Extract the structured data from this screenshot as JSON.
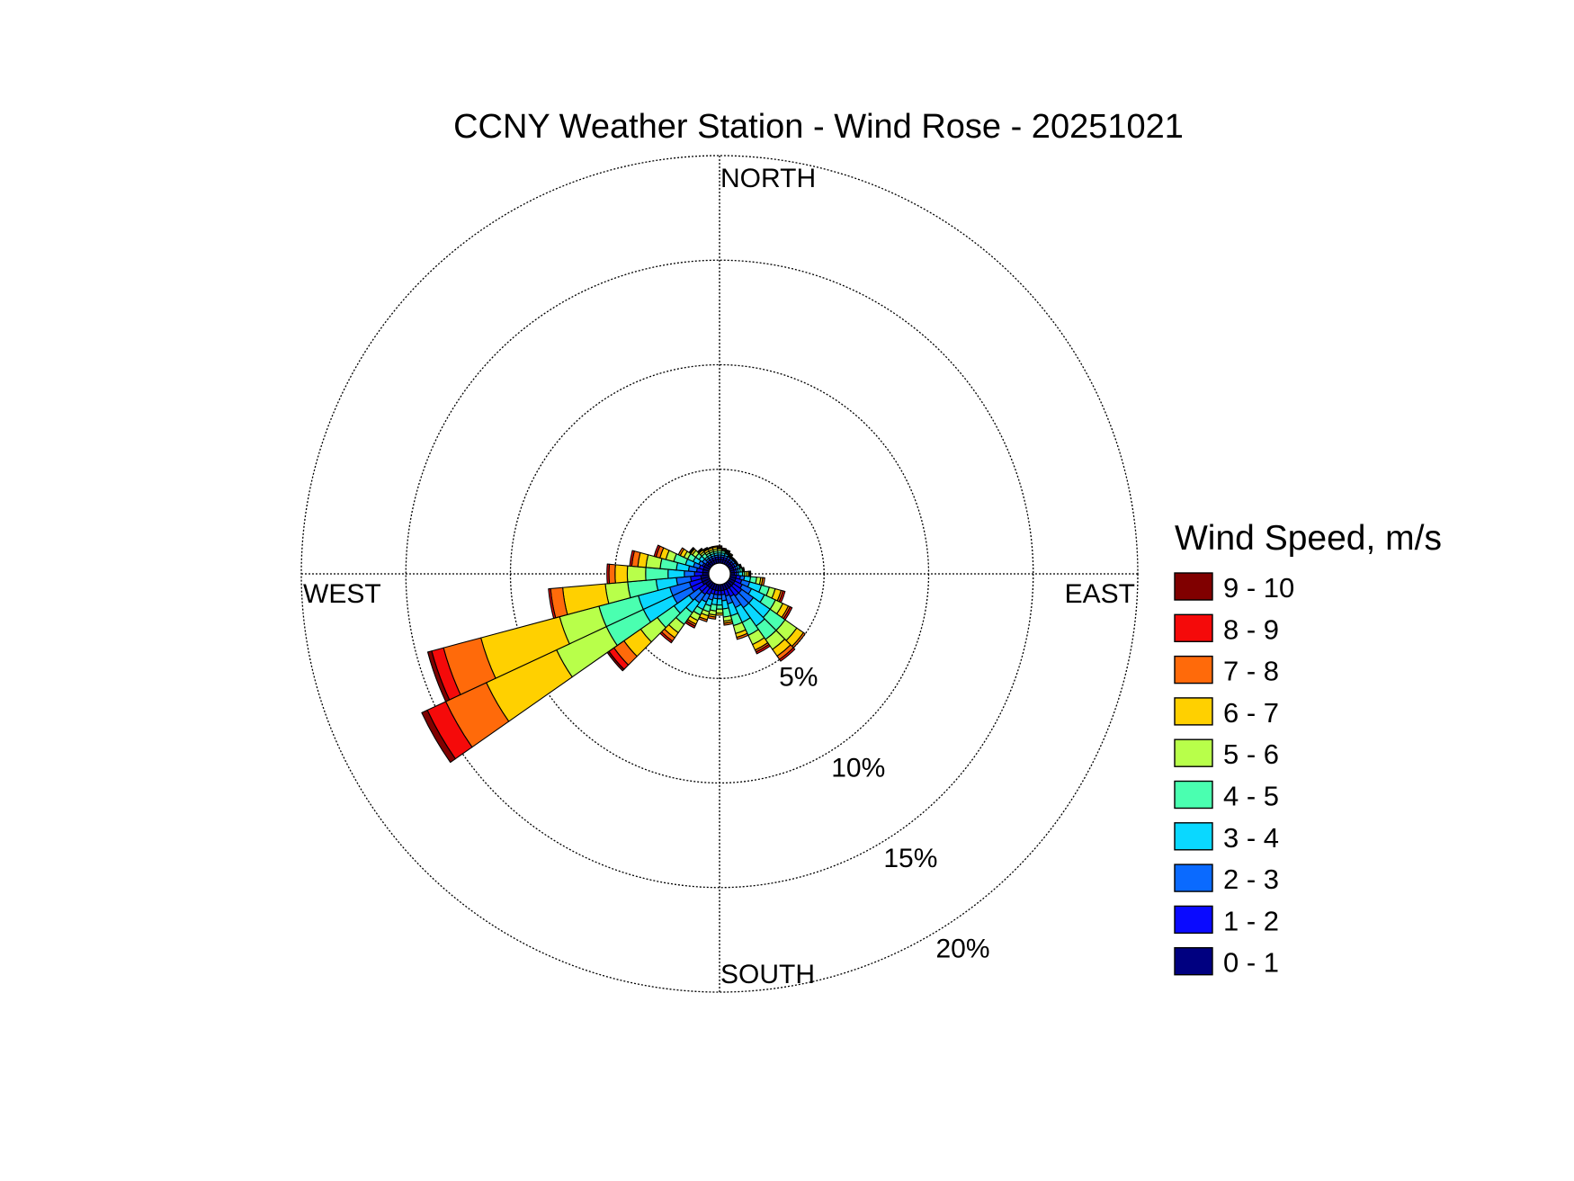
{
  "chart_data": {
    "type": "wind-rose",
    "title": "CCNY Weather Station - Wind Rose - 20251021",
    "compass": {
      "north": "NORTH",
      "south": "SOUTH",
      "east": "EAST",
      "west": "WEST"
    },
    "radial_axis": {
      "unit": "%",
      "max": 20,
      "rings": [
        5,
        10,
        15,
        20
      ],
      "ring_labels": [
        "5%",
        "10%",
        "15%",
        "20%"
      ],
      "grid": true
    },
    "legend": {
      "title": "Wind Speed, m/s",
      "placement": "right",
      "bins": [
        {
          "label": "9 - 10",
          "color": "#800000"
        },
        {
          "label": "8 - 9",
          "color": "#f50a0a"
        },
        {
          "label": "7 - 8",
          "color": "#ff6a0a"
        },
        {
          "label": "6 - 7",
          "color": "#ffd000"
        },
        {
          "label": "5 - 6",
          "color": "#b8ff4a"
        },
        {
          "label": "4 - 5",
          "color": "#4affb0"
        },
        {
          "label": "3 - 4",
          "color": "#0ad8ff"
        },
        {
          "label": "2 - 3",
          "color": "#0a6aff"
        },
        {
          "label": "1 - 2",
          "color": "#0a0aff"
        },
        {
          "label": "0 - 1",
          "color": "#000080"
        }
      ]
    },
    "sector_width_deg": 10,
    "speed_bins_order": [
      "0 - 1",
      "1 - 2",
      "2 - 3",
      "3 - 4",
      "4 - 5",
      "5 - 6",
      "6 - 7",
      "7 - 8",
      "8 - 9",
      "9 - 10"
    ],
    "directions": [
      {
        "dir": 0,
        "cumulative": [
          0.2,
          0.3,
          0.4,
          0.5,
          0.6,
          0.7,
          0.75,
          0.8,
          0.85,
          0.85
        ]
      },
      {
        "dir": 10,
        "cumulative": [
          0.2,
          0.3,
          0.4,
          0.5,
          0.6,
          0.65,
          0.7,
          0.75,
          0.75,
          0.75
        ]
      },
      {
        "dir": 20,
        "cumulative": [
          0.2,
          0.3,
          0.4,
          0.5,
          0.55,
          0.6,
          0.65,
          0.7,
          0.7,
          0.7
        ]
      },
      {
        "dir": 30,
        "cumulative": [
          0.2,
          0.3,
          0.4,
          0.45,
          0.5,
          0.55,
          0.6,
          0.6,
          0.6,
          0.6
        ]
      },
      {
        "dir": 40,
        "cumulative": [
          0.2,
          0.3,
          0.4,
          0.45,
          0.5,
          0.5,
          0.5,
          0.5,
          0.5,
          0.5
        ]
      },
      {
        "dir": 50,
        "cumulative": [
          0.2,
          0.3,
          0.4,
          0.45,
          0.5,
          0.5,
          0.5,
          0.5,
          0.5,
          0.5
        ]
      },
      {
        "dir": 60,
        "cumulative": [
          0.2,
          0.3,
          0.4,
          0.45,
          0.5,
          0.5,
          0.5,
          0.5,
          0.5,
          0.5
        ]
      },
      {
        "dir": 70,
        "cumulative": [
          0.2,
          0.3,
          0.4,
          0.5,
          0.55,
          0.6,
          0.6,
          0.6,
          0.6,
          0.6
        ]
      },
      {
        "dir": 80,
        "cumulative": [
          0.2,
          0.3,
          0.4,
          0.5,
          0.6,
          0.65,
          0.7,
          0.7,
          0.7,
          0.7
        ]
      },
      {
        "dir": 90,
        "cumulative": [
          0.2,
          0.3,
          0.4,
          0.6,
          0.7,
          0.8,
          0.9,
          0.95,
          1.0,
          1.0
        ]
      },
      {
        "dir": 100,
        "cumulative": [
          0.3,
          0.5,
          0.7,
          1.0,
          1.3,
          1.5,
          1.6,
          1.7,
          1.7,
          1.7
        ]
      },
      {
        "dir": 110,
        "cumulative": [
          0.3,
          0.6,
          1.0,
          1.6,
          2.0,
          2.3,
          2.6,
          2.7,
          2.8,
          2.8
        ]
      },
      {
        "dir": 120,
        "cumulative": [
          0.3,
          0.7,
          1.2,
          1.9,
          2.5,
          2.9,
          3.2,
          3.3,
          3.4,
          3.4
        ]
      },
      {
        "dir": 130,
        "cumulative": [
          0.3,
          0.8,
          1.5,
          2.5,
          3.4,
          4.1,
          4.5,
          4.6,
          4.6,
          4.6
        ]
      },
      {
        "dir": 140,
        "cumulative": [
          0.3,
          0.8,
          1.5,
          2.6,
          3.4,
          4.0,
          4.4,
          4.6,
          4.7,
          4.7
        ]
      },
      {
        "dir": 150,
        "cumulative": [
          0.3,
          0.7,
          1.3,
          2.1,
          2.8,
          3.3,
          3.6,
          3.7,
          3.8,
          3.8
        ]
      },
      {
        "dir": 160,
        "cumulative": [
          0.3,
          0.6,
          1.0,
          1.6,
          2.1,
          2.5,
          2.7,
          2.8,
          2.8,
          2.8
        ]
      },
      {
        "dir": 170,
        "cumulative": [
          0.3,
          0.5,
          0.8,
          1.2,
          1.6,
          1.8,
          1.9,
          2.0,
          2.0,
          2.0
        ]
      },
      {
        "dir": 180,
        "cumulative": [
          0.3,
          0.5,
          0.7,
          1.0,
          1.2,
          1.4,
          1.5,
          1.5,
          1.5,
          1.5
        ]
      },
      {
        "dir": 190,
        "cumulative": [
          0.3,
          0.5,
          0.7,
          1.0,
          1.3,
          1.5,
          1.6,
          1.7,
          1.7,
          1.7
        ]
      },
      {
        "dir": 200,
        "cumulative": [
          0.3,
          0.5,
          0.8,
          1.1,
          1.4,
          1.6,
          1.8,
          1.9,
          1.9,
          1.9
        ]
      },
      {
        "dir": 210,
        "cumulative": [
          0.3,
          0.6,
          1.0,
          1.4,
          1.7,
          2.0,
          2.2,
          2.3,
          2.4,
          2.4
        ]
      },
      {
        "dir": 220,
        "cumulative": [
          0.3,
          0.7,
          1.2,
          1.8,
          2.5,
          3.0,
          3.3,
          3.5,
          3.6,
          3.6
        ]
      },
      {
        "dir": 230,
        "cumulative": [
          0.3,
          0.7,
          1.3,
          2.2,
          3.2,
          4.2,
          5.2,
          5.8,
          6.1,
          6.2
        ]
      },
      {
        "dir": 240,
        "cumulative": [
          0.4,
          1.0,
          2.0,
          3.6,
          5.6,
          8.3,
          12.1,
          14.3,
          15.3,
          15.6
        ]
      },
      {
        "dir": 250,
        "cumulative": [
          0.4,
          1.0,
          2.0,
          3.6,
          5.6,
          7.6,
          11.6,
          13.5,
          14.1,
          14.3
        ]
      },
      {
        "dir": 260,
        "cumulative": [
          0.4,
          0.9,
          1.6,
          2.6,
          4.0,
          5.1,
          7.2,
          7.8,
          7.9,
          7.9
        ]
      },
      {
        "dir": 270,
        "cumulative": [
          0.3,
          0.7,
          1.2,
          2.0,
          3.1,
          4.0,
          4.6,
          4.9,
          5.0,
          5.0
        ]
      },
      {
        "dir": 280,
        "cumulative": [
          0.3,
          0.6,
          1.0,
          1.6,
          2.4,
          3.1,
          3.5,
          3.8,
          3.9,
          3.9
        ]
      },
      {
        "dir": 290,
        "cumulative": [
          0.3,
          0.5,
          0.8,
          1.2,
          1.8,
          2.2,
          2.5,
          2.7,
          2.8,
          2.8
        ]
      },
      {
        "dir": 300,
        "cumulative": [
          0.3,
          0.4,
          0.6,
          0.9,
          1.2,
          1.4,
          1.6,
          1.7,
          1.7,
          1.7
        ]
      },
      {
        "dir": 310,
        "cumulative": [
          0.2,
          0.3,
          0.5,
          0.7,
          0.9,
          1.1,
          1.2,
          1.25,
          1.3,
          1.3
        ]
      },
      {
        "dir": 320,
        "cumulative": [
          0.2,
          0.3,
          0.4,
          0.5,
          0.7,
          0.8,
          0.9,
          0.95,
          1.0,
          1.0
        ]
      },
      {
        "dir": 330,
        "cumulative": [
          0.2,
          0.3,
          0.4,
          0.5,
          0.6,
          0.7,
          0.8,
          0.85,
          0.9,
          0.9
        ]
      },
      {
        "dir": 340,
        "cumulative": [
          0.2,
          0.3,
          0.4,
          0.5,
          0.6,
          0.7,
          0.8,
          0.85,
          0.85,
          0.85
        ]
      },
      {
        "dir": 350,
        "cumulative": [
          0.2,
          0.3,
          0.4,
          0.5,
          0.6,
          0.7,
          0.8,
          0.85,
          0.85,
          0.85
        ]
      }
    ]
  }
}
